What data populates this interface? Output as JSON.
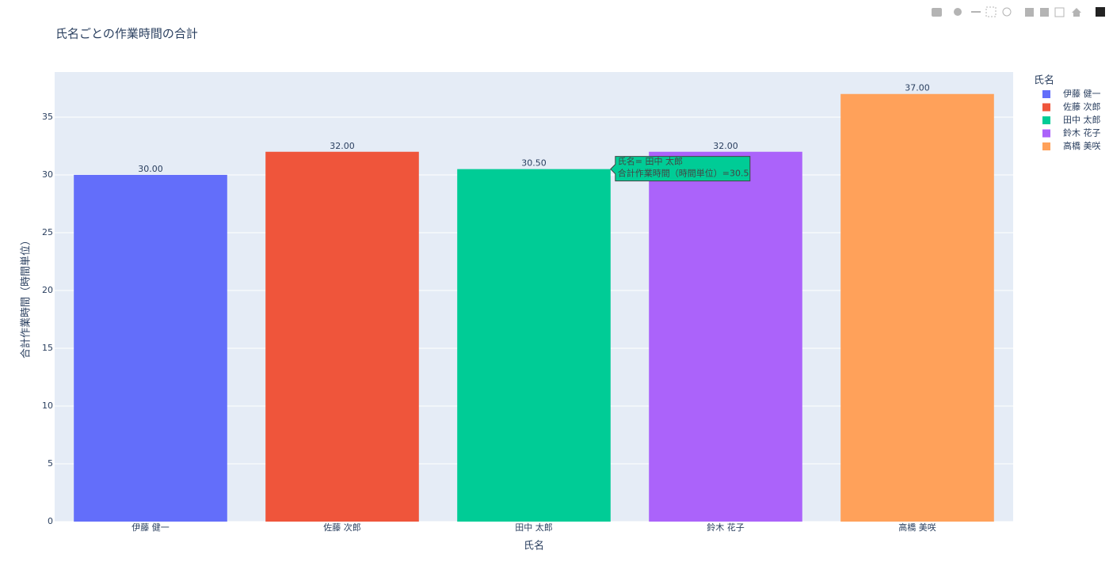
{
  "chart_data": {
    "type": "bar",
    "title": "氏名ごとの作業時間の合計",
    "x_label": "氏名",
    "y_label": "合計作業時間（時間単位）",
    "categories": [
      "伊藤 健一",
      "佐藤 次郎",
      "田中 太郎",
      "鈴木 花子",
      "高橋 美咲"
    ],
    "values": [
      30,
      32,
      30.5,
      32,
      37
    ],
    "value_labels": [
      "30.00",
      "32.00",
      "30.50",
      "32.00",
      "37.00"
    ],
    "colors": [
      "#636efa",
      "#EF553B",
      "#00cc96",
      "#ab63fa",
      "#FFA15A"
    ],
    "legend_title": "氏名",
    "legend_position": "right",
    "ylim": [
      0,
      38.9
    ],
    "yticks": [
      0,
      5,
      10,
      15,
      20,
      25,
      30,
      35
    ],
    "grid": true,
    "hover_label": {
      "lines": [
        "氏名= 田中 太郎",
        "合計作業時間（時間単位）=30.5"
      ]
    }
  }
}
